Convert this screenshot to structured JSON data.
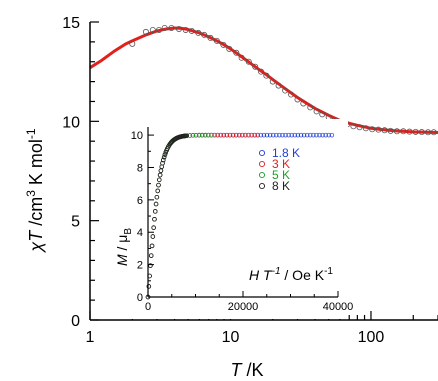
{
  "chart_data": [
    {
      "type": "scatter",
      "xscale": "log",
      "xlim": [
        1,
        300
      ],
      "ylim": [
        0,
        15
      ],
      "xticks": [
        {
          "value": 1,
          "label": "1"
        },
        {
          "value": 10,
          "label": "10"
        },
        {
          "value": 100,
          "label": "100"
        }
      ],
      "yticks": [
        {
          "value": 0,
          "label": "0"
        },
        {
          "value": 5,
          "label": "5"
        },
        {
          "value": 10,
          "label": "10"
        },
        {
          "value": 15,
          "label": "15"
        }
      ],
      "xlabel": {
        "var": "T",
        "unit": " /K"
      },
      "ylabel": {
        "var": "χT",
        "u1": " /cm",
        "s1": "3",
        "u2": " K mol",
        "s2": "-1"
      },
      "series": [
        {
          "kind": "points",
          "color": "#555555",
          "x": [
            2.0,
            2.5,
            2.8,
            3.1,
            3.4,
            3.8,
            4.3,
            4.8,
            5.3,
            5.9,
            6.5,
            7.2,
            8.0,
            8.9,
            9.8,
            11,
            12,
            13.5,
            15,
            16.5,
            18,
            20,
            22,
            24.5,
            27,
            30,
            33,
            37,
            41,
            45,
            50,
            55,
            61,
            68,
            75,
            83,
            92,
            102,
            113,
            125,
            138,
            153,
            170,
            188,
            208,
            230,
            255,
            280
          ],
          "y": [
            13.9,
            14.5,
            14.6,
            14.6,
            14.7,
            14.7,
            14.65,
            14.6,
            14.55,
            14.45,
            14.35,
            14.2,
            14.05,
            13.85,
            13.65,
            13.45,
            13.2,
            13.0,
            12.75,
            12.5,
            12.3,
            12.0,
            11.8,
            11.55,
            11.35,
            11.1,
            10.9,
            10.7,
            10.5,
            10.35,
            10.2,
            10.05,
            9.95,
            9.85,
            9.75,
            9.7,
            9.65,
            9.6,
            9.58,
            9.55,
            9.52,
            9.5,
            9.5,
            9.48,
            9.47,
            9.46,
            9.45,
            9.45
          ]
        },
        {
          "kind": "fit",
          "color": "#e0211c",
          "x": [
            1.0,
            1.2,
            1.5,
            1.8,
            2.0,
            2.5,
            3.0,
            3.5,
            4.0,
            4.5,
            5.0,
            6.0,
            7.0,
            8.0,
            9.0,
            10,
            12,
            14,
            16,
            18,
            20,
            25,
            30,
            35,
            40,
            50,
            60,
            70,
            80,
            100,
            120,
            150,
            200,
            250,
            300
          ],
          "y": [
            12.7,
            13.05,
            13.55,
            13.9,
            14.05,
            14.35,
            14.55,
            14.65,
            14.7,
            14.68,
            14.62,
            14.45,
            14.25,
            14.05,
            13.85,
            13.65,
            13.25,
            12.9,
            12.6,
            12.35,
            12.1,
            11.6,
            11.2,
            10.9,
            10.65,
            10.3,
            10.05,
            9.9,
            9.8,
            9.65,
            9.58,
            9.52,
            9.47,
            9.45,
            9.44
          ]
        }
      ]
    },
    {
      "type": "scatter",
      "xlim": [
        0,
        40000
      ],
      "ylim": [
        0,
        10.5
      ],
      "xticks": [
        {
          "value": 0,
          "label": "0"
        },
        {
          "value": 20000,
          "label": "20000"
        },
        {
          "value": 40000,
          "label": "40000"
        }
      ],
      "yticks": [
        {
          "value": 0,
          "label": "0"
        },
        {
          "value": 2,
          "label": "2"
        },
        {
          "value": 4,
          "label": "4"
        },
        {
          "value": 6,
          "label": "6"
        },
        {
          "value": 8,
          "label": "8"
        },
        {
          "value": 10,
          "label": "10"
        }
      ],
      "xlabel": {
        "var": "H T",
        "sup": "-1",
        "rest": " / Oe K",
        "sup2": "-1"
      },
      "ylabel": {
        "var": "M",
        "rest": " / μ",
        "sub": "B"
      },
      "series": [
        {
          "name": "1.8 K",
          "color": "#1f3fd6",
          "xmax": 38900
        },
        {
          "name": "3 K",
          "color": "#e02020",
          "xmax": 23300
        },
        {
          "name": "5 K",
          "color": "#1e9e2a",
          "xmax": 14000
        },
        {
          "name": "8 K",
          "color": "#222222",
          "xmax": 8750
        }
      ],
      "curve": {
        "msat": 10.0,
        "h0": 2600
      }
    }
  ]
}
